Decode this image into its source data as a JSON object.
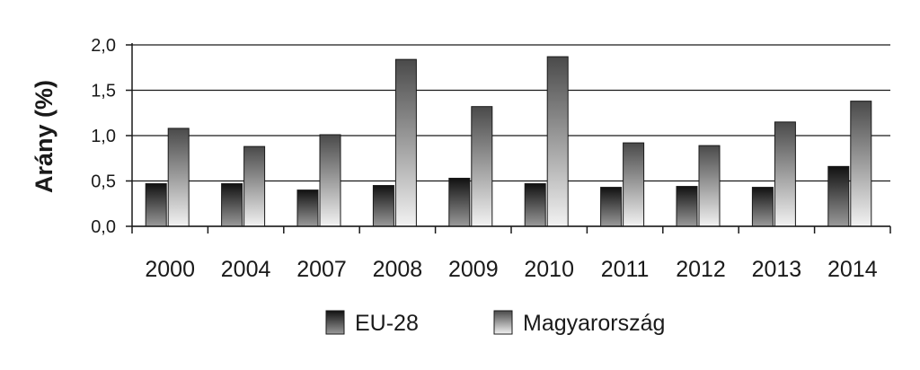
{
  "chart_data": {
    "type": "bar",
    "title": "",
    "xlabel": "",
    "ylabel": "Arány (%)",
    "ylim": [
      0,
      2.0
    ],
    "yticks": [
      "0,0",
      "0,5",
      "1,0",
      "1,5",
      "2,0"
    ],
    "grid": true,
    "legend_position": "bottom",
    "categories": [
      "2000",
      "2004",
      "2007",
      "2008",
      "2009",
      "2010",
      "2011",
      "2012",
      "2013",
      "2014"
    ],
    "series": [
      {
        "name": "EU-28",
        "values": [
          0.47,
          0.47,
          0.4,
          0.45,
          0.53,
          0.47,
          0.43,
          0.44,
          0.43,
          0.66
        ],
        "color_top": "#111111",
        "color_bottom": "#9a9a9a"
      },
      {
        "name": "Magyarország",
        "values": [
          1.08,
          0.88,
          1.01,
          1.84,
          1.32,
          1.87,
          0.92,
          0.89,
          1.15,
          1.38
        ],
        "color_top": "#4a4a4a",
        "color_bottom": "#f2f2f2"
      }
    ]
  }
}
